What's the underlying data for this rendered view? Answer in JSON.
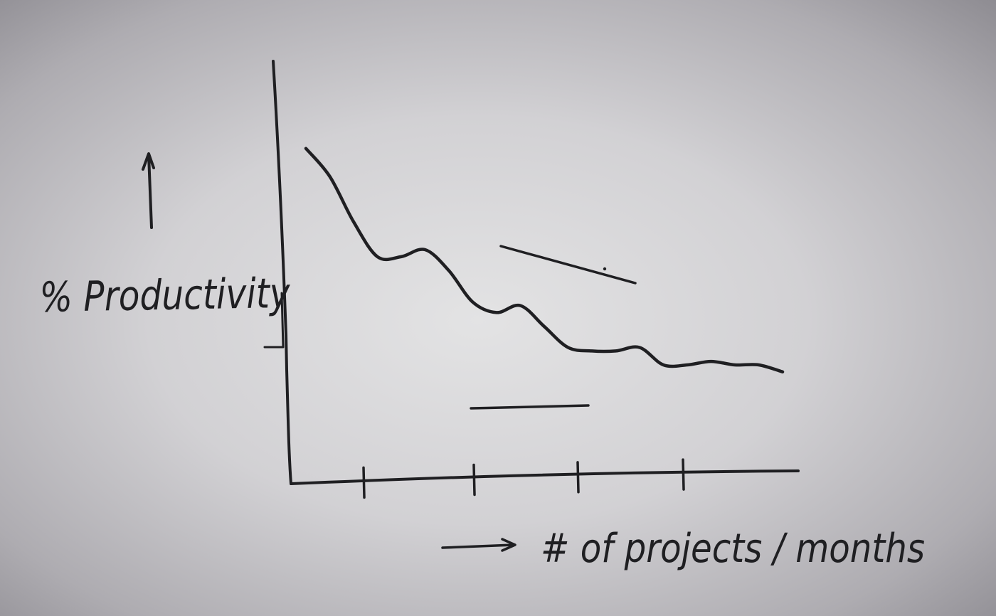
{
  "chart_data": {
    "type": "line",
    "title": "",
    "ylabel": "% Productivity",
    "xlabel": "# of projects / months",
    "x_ticks": 4,
    "x": [
      0,
      0.5,
      1,
      1.5,
      2,
      2.5,
      3,
      3.5,
      4,
      4.5,
      5,
      5.5,
      6,
      6.5,
      7,
      7.5,
      8,
      8.5,
      9,
      9.5,
      10
    ],
    "series": [
      {
        "values": [
          95,
          87,
          74,
          64,
          64,
          66,
          60,
          51,
          48,
          50,
          44,
          38,
          37,
          37,
          38,
          33,
          33,
          34,
          33,
          33,
          31
        ]
      }
    ],
    "xlim": [
      0,
      10
    ],
    "ylim": [
      0,
      120
    ],
    "grid": false,
    "legend": "none"
  },
  "colors": {
    "ink": "#1f1f22",
    "paper": "#d2d1d4"
  },
  "icons": [
    "up-arrow-icon",
    "right-arrow-icon"
  ]
}
